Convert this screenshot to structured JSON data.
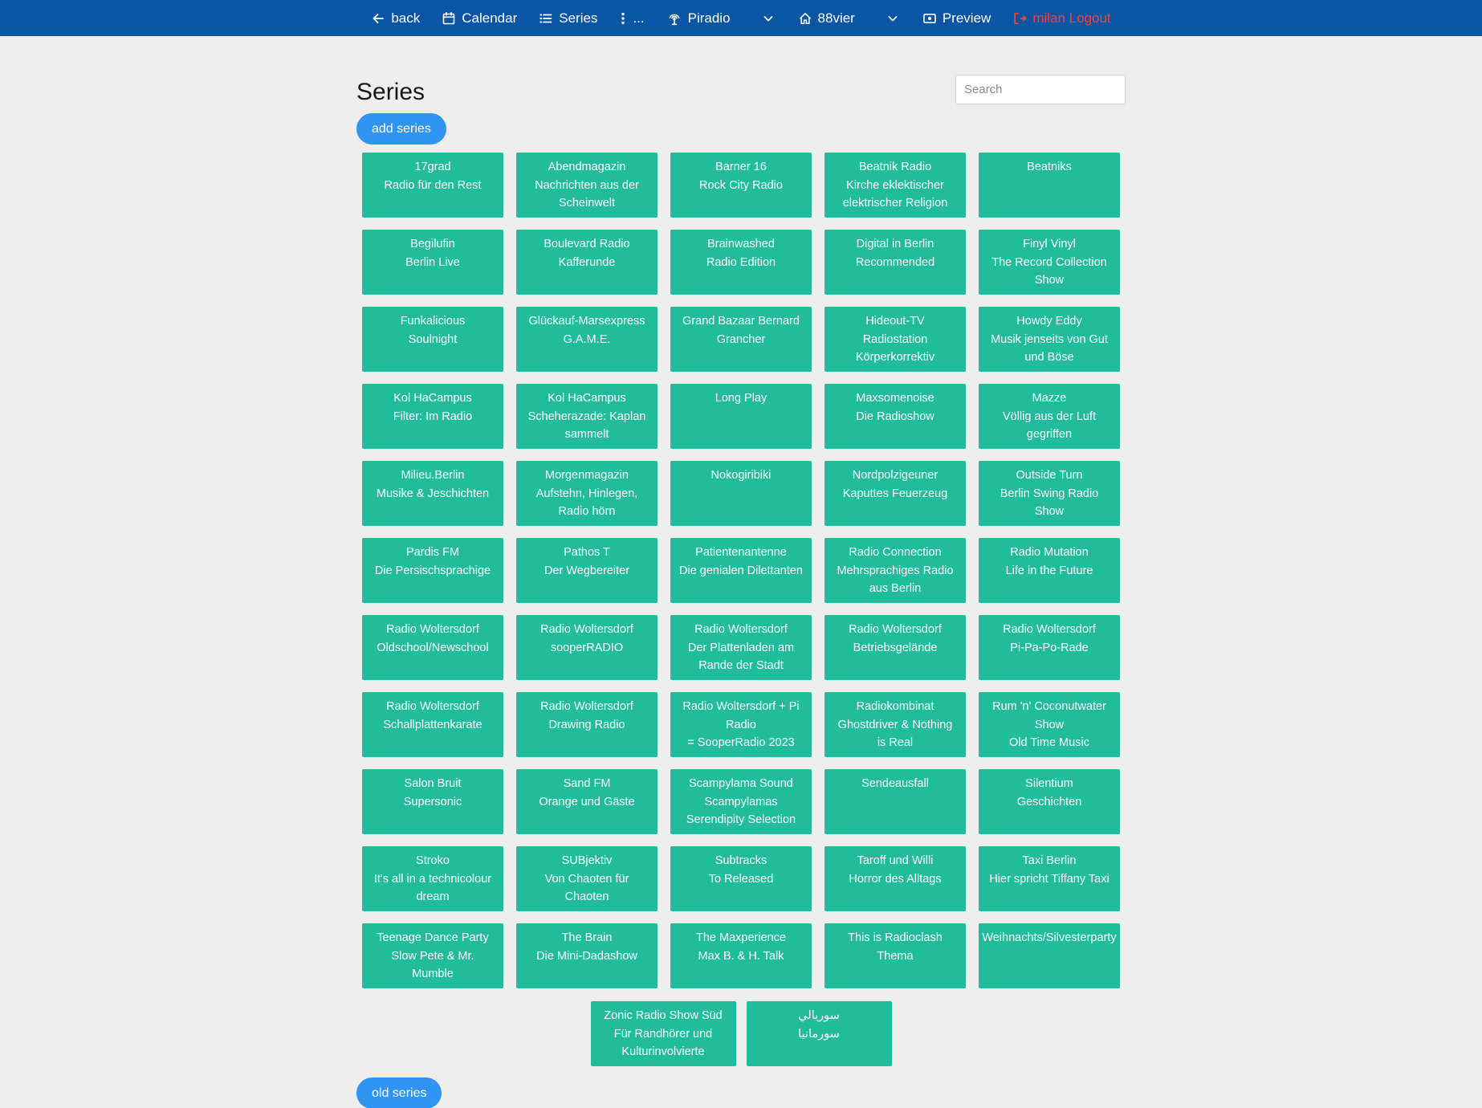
{
  "nav": {
    "back_label": "back",
    "calendar_label": "Calendar",
    "series_label": "Series",
    "more_label": "...",
    "piradio_label": "Piradio",
    "station_label": "88vier",
    "preview_label": "Preview",
    "logout_label": "milan Logout"
  },
  "header": {
    "title": "Series",
    "search_placeholder": "Search",
    "add_series_label": "add series",
    "old_series_label": "old series"
  },
  "colors": {
    "navbar_blue": "#0a55a4",
    "card_teal": "#21bc9b",
    "button_blue": "#3095f2",
    "logout_red": "#f4433c",
    "page_background": "#eeeeee"
  },
  "series": {
    "cards": [
      [
        "17grad",
        "Radio für den Rest"
      ],
      [
        "Abendmagazin",
        "Nachrichten aus der",
        "Scheinwelt"
      ],
      [
        "Barner 16",
        "Rock City Radio"
      ],
      [
        "Beatnik Radio",
        "Kirche eklektischer",
        "elektrischer Religion"
      ],
      [
        "Beatniks"
      ],
      [
        "Begilufin",
        "Berlin Live"
      ],
      [
        "Boulevard Radio",
        "Kafferunde"
      ],
      [
        "Brainwashed",
        "Radio Edition"
      ],
      [
        "Digital in Berlin",
        "Recommended"
      ],
      [
        "Finyl Vinyl",
        "The Record Collection",
        "Show"
      ],
      [
        "Funkalicious",
        "Soulnight"
      ],
      [
        "Glückauf-Marsexpress",
        "G.A.M.E."
      ],
      [
        "Grand Bazaar Bernard",
        "Grancher"
      ],
      [
        "Hideout-TV",
        "Radiostation",
        "Körperkorrektiv"
      ],
      [
        "Howdy Eddy",
        "Musik jenseits von Gut",
        "und Böse"
      ],
      [
        "Kol HaCampus",
        "Filter: Im Radio"
      ],
      [
        "Kol HaCampus",
        "Scheherazade: Kaplan",
        "sammelt"
      ],
      [
        "Long Play"
      ],
      [
        "Maxsomenoise",
        "Die Radioshow"
      ],
      [
        "Mazze",
        "Völlig aus der Luft",
        "gegriffen"
      ],
      [
        "Milieu.Berlin",
        "Musike & Jeschichten"
      ],
      [
        "Morgenmagazin",
        "Aufstehn, Hinlegen,",
        "Radio hörn"
      ],
      [
        "Nokogiribiki"
      ],
      [
        "Nordpolzigeuner",
        "Kaputtes Feuerzeug"
      ],
      [
        "Outside Turn",
        "Berlin Swing Radio",
        "Show"
      ],
      [
        "Pardis FM",
        "Die Persischsprachige"
      ],
      [
        "Pathos T",
        "Der Wegbereiter"
      ],
      [
        "Patientenantenne",
        "Die genialen Dilettanten"
      ],
      [
        "Radio Connection",
        "Mehrsprachiges Radio",
        "aus Berlin"
      ],
      [
        "Radio Mutation",
        "Life in the Future"
      ],
      [
        "Radio Woltersdorf",
        "Oldschool/Newschool"
      ],
      [
        "Radio Woltersdorf",
        "sooperRADIO"
      ],
      [
        "Radio Woltersdorf",
        "Der Plattenladen am",
        "Rande der Stadt"
      ],
      [
        "Radio Woltersdorf",
        "Betriebsgelände"
      ],
      [
        "Radio Woltersdorf",
        "Pi-Pa-Po-Rade"
      ],
      [
        "Radio Woltersdorf",
        "Schallplattenkarate"
      ],
      [
        "Radio Woltersdorf",
        "Drawing Radio"
      ],
      [
        "Radio Woltersdorf + Pi",
        "Radio",
        "= SooperRadio 2023"
      ],
      [
        "Radiokombinat",
        "Ghostdriver & Nothing",
        "is Real"
      ],
      [
        "Rum 'n' Coconutwater",
        "Show",
        "Old Time Music"
      ],
      [
        "Salon Bruit",
        "Supersonic"
      ],
      [
        "Sand FM",
        "Orange und Gäste"
      ],
      [
        "Scampylama Sound",
        "Scampylamas",
        "Serendipity Selection"
      ],
      [
        "Sendeausfall"
      ],
      [
        "Silentium",
        "Geschichten"
      ],
      [
        "Stroko",
        "It's all in a technicolour",
        "dream"
      ],
      [
        "SUBjektiv",
        "Von Chaoten für",
        "Chaoten"
      ],
      [
        "Subtracks",
        "To Released"
      ],
      [
        "Taroff und Willi",
        "Horror des Alltags"
      ],
      [
        "Taxi Berlin",
        "Hier spricht Tiffany Taxi"
      ],
      [
        "Teenage Dance Party",
        "Slow Pete & Mr.",
        "Mumble"
      ],
      [
        "The Brain",
        "Die Mini-Dadashow"
      ],
      [
        "The Maxperience",
        "Max B. & H. Talk"
      ],
      [
        "This is Radioclash",
        "Thema"
      ],
      [
        "Weihnachts/Silvesterparty"
      ]
    ],
    "footer_cards": [
      [
        "Zonic Radio Show Süd",
        "Für Randhörer und",
        "Kulturinvolvierte"
      ],
      [
        "سوريالي",
        "سورمانيا"
      ]
    ]
  }
}
